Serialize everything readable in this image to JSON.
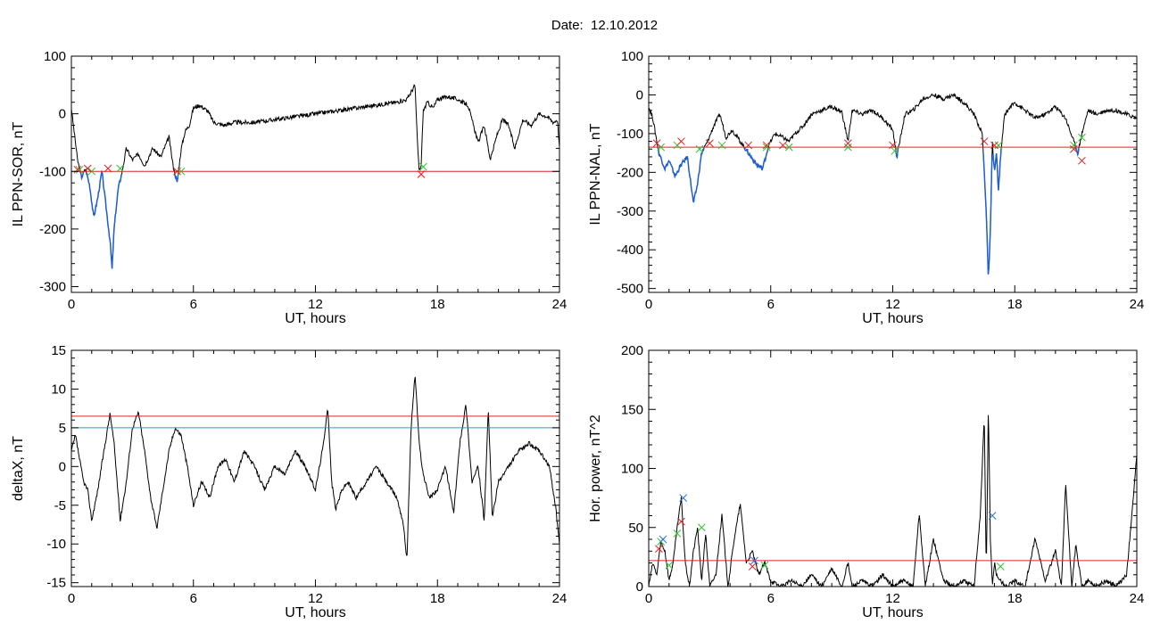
{
  "title": "Date:  12.10.2012",
  "colors": {
    "trace": "#000000",
    "highlight": "#1f5fd0",
    "threshold": "#e02020",
    "threshold2": "#20a0c0",
    "marker_start": "#30c030",
    "marker_end": "#e02020",
    "marker_peak": "#3070e0"
  },
  "chart_data": [
    {
      "id": "sor",
      "type": "line",
      "xlabel": "UT, hours",
      "ylabel": "IL PPN-SOR, nT",
      "xlim": [
        0,
        24
      ],
      "ylim": [
        -310,
        100
      ],
      "xticks": [
        0,
        6,
        12,
        18,
        24
      ],
      "yticks": [
        100,
        0,
        -100,
        -200,
        -300
      ],
      "grid": false,
      "threshold": -100,
      "series": [
        {
          "x": [
            0,
            0.3,
            0.5,
            0.7,
            0.9,
            1.1,
            1.3,
            1.5,
            1.7,
            1.9,
            2.0,
            2.1,
            2.3,
            2.5,
            2.7,
            3.0,
            3.3,
            3.6,
            4.0,
            4.4,
            4.8,
            5.0,
            5.2,
            5.4,
            5.6,
            5.8,
            6.0,
            6.3,
            6.7,
            7.0,
            7.5,
            8,
            9,
            10,
            11,
            12,
            13,
            14,
            15,
            16,
            16.5,
            16.9,
            17.0,
            17.1,
            17.2,
            17.3,
            17.5,
            17.8,
            18,
            18.5,
            19,
            19.5,
            20,
            20.3,
            20.6,
            20.9,
            21.2,
            21.5,
            21.8,
            22.2,
            22.6,
            23,
            23.4,
            23.7,
            23.9,
            24
          ],
          "y": [
            10,
            -80,
            -110,
            -95,
            -125,
            -180,
            -145,
            -100,
            -160,
            -220,
            -270,
            -200,
            -130,
            -100,
            -60,
            -80,
            -70,
            -90,
            -60,
            -75,
            -40,
            -90,
            -120,
            -60,
            -30,
            -20,
            10,
            15,
            5,
            -15,
            -20,
            -15,
            -15,
            -10,
            -5,
            0,
            5,
            10,
            15,
            20,
            25,
            50,
            -40,
            -100,
            -90,
            5,
            20,
            10,
            25,
            30,
            25,
            15,
            -50,
            -20,
            -80,
            -40,
            -10,
            -20,
            -60,
            -10,
            -20,
            0,
            -5,
            -15,
            -10,
            -60
          ]
        }
      ],
      "markers": {
        "start": [
          [
            0.4,
            -97
          ],
          [
            1.0,
            -100
          ],
          [
            2.4,
            -95
          ],
          [
            5.4,
            -100
          ],
          [
            17.3,
            -92
          ]
        ],
        "end": [
          [
            0.3,
            -97
          ],
          [
            0.8,
            -95
          ],
          [
            1.8,
            -95
          ],
          [
            5.2,
            -100
          ],
          [
            17.2,
            -105
          ]
        ]
      }
    },
    {
      "id": "nal",
      "type": "line",
      "xlabel": "UT, hours",
      "ylabel": "IL PPN-NAL, nT",
      "xlim": [
        0,
        24
      ],
      "ylim": [
        -510,
        100
      ],
      "xticks": [
        0,
        6,
        12,
        18,
        24
      ],
      "yticks": [
        100,
        0,
        -100,
        -200,
        -300,
        -400,
        -500
      ],
      "grid": false,
      "threshold": -135,
      "series": [
        {
          "x": [
            0,
            0.2,
            0.5,
            0.8,
            1.0,
            1.3,
            1.6,
            1.9,
            2.2,
            2.4,
            2.6,
            2.9,
            3.2,
            3.5,
            3.8,
            4.1,
            4.5,
            4.9,
            5.3,
            5.6,
            5.9,
            6.2,
            6.6,
            6.9,
            7.2,
            7.6,
            8,
            8.5,
            9,
            9.5,
            9.8,
            10,
            10.5,
            11,
            11.5,
            12,
            12.2,
            12.6,
            13,
            13.5,
            14,
            14.5,
            15,
            15.5,
            16,
            16.4,
            16.6,
            16.7,
            16.8,
            16.9,
            17.0,
            17.1,
            17.2,
            17.3,
            17.5,
            17.8,
            18,
            18.5,
            19,
            19.5,
            20,
            20.5,
            20.9,
            21.1,
            21.3,
            21.6,
            22,
            22.5,
            23,
            23.5,
            24
          ],
          "y": [
            -30,
            -60,
            -150,
            -190,
            -170,
            -210,
            -180,
            -160,
            -280,
            -230,
            -150,
            -120,
            -80,
            -50,
            -110,
            -90,
            -120,
            -150,
            -180,
            -190,
            -130,
            -100,
            -110,
            -120,
            -100,
            -80,
            -50,
            -40,
            -30,
            -45,
            -120,
            -40,
            -50,
            -40,
            -60,
            -90,
            -160,
            -50,
            -40,
            -10,
            0,
            -10,
            0,
            -20,
            -50,
            -100,
            -300,
            -480,
            -350,
            -120,
            -200,
            -150,
            -250,
            -160,
            -50,
            -30,
            -20,
            -40,
            -60,
            -50,
            -30,
            -60,
            -120,
            -150,
            -100,
            -40,
            -50,
            -40,
            -40,
            -50,
            -60
          ]
        }
      ],
      "markers": {
        "start": [
          [
            0.6,
            -135
          ],
          [
            1.4,
            -130
          ],
          [
            2.5,
            -140
          ],
          [
            3.6,
            -130
          ],
          [
            5.8,
            -135
          ],
          [
            6.9,
            -135
          ],
          [
            9.8,
            -135
          ],
          [
            12.1,
            -145
          ],
          [
            17.2,
            -130
          ],
          [
            20.9,
            -130
          ],
          [
            21.3,
            -110
          ]
        ],
        "end": [
          [
            0.4,
            -125
          ],
          [
            1.6,
            -120
          ],
          [
            3.0,
            -125
          ],
          [
            4.9,
            -130
          ],
          [
            5.8,
            -130
          ],
          [
            6.6,
            -130
          ],
          [
            9.8,
            -125
          ],
          [
            12.0,
            -130
          ],
          [
            16.5,
            -120
          ],
          [
            17.0,
            -130
          ],
          [
            20.9,
            -140
          ],
          [
            21.3,
            -170
          ]
        ]
      }
    },
    {
      "id": "deltax",
      "type": "line",
      "xlabel": "UT, hours",
      "ylabel": "deltaX, nT",
      "xlim": [
        0,
        24
      ],
      "ylim": [
        -15.5,
        15
      ],
      "xticks": [
        0,
        6,
        12,
        18,
        24
      ],
      "yticks": [
        15,
        10,
        5,
        0,
        -5,
        -10,
        -15
      ],
      "grid": false,
      "threshold": 6.5,
      "threshold2": 5,
      "series": [
        {
          "x": [
            0,
            0.2,
            0.4,
            0.6,
            0.8,
            1.0,
            1.3,
            1.6,
            1.9,
            2.1,
            2.4,
            2.7,
            3.0,
            3.3,
            3.6,
            3.9,
            4.2,
            4.5,
            4.8,
            5.1,
            5.4,
            5.7,
            6.0,
            6.4,
            6.8,
            7.2,
            7.6,
            8,
            8.5,
            9,
            9.5,
            10,
            10.5,
            11,
            11.5,
            12,
            12.4,
            12.6,
            12.8,
            13.0,
            13.3,
            13.6,
            14,
            14.5,
            15,
            15.5,
            16,
            16.3,
            16.5,
            16.7,
            16.9,
            17.1,
            17.3,
            17.6,
            18,
            18.4,
            18.8,
            19.1,
            19.4,
            19.7,
            20,
            20.3,
            20.5,
            20.7,
            21.0,
            21.5,
            22,
            22.5,
            23,
            23.5,
            23.8,
            24
          ],
          "y": [
            2,
            4,
            1,
            -2,
            -3,
            -7,
            -3,
            2,
            6.8,
            3,
            -7,
            -2,
            5,
            7,
            2,
            -4,
            -8,
            -3,
            2,
            5,
            4,
            0,
            -5,
            -2,
            -4,
            0,
            1,
            -2,
            2,
            0,
            -3,
            0,
            -1,
            2,
            0,
            -3,
            3,
            7.8,
            -2,
            -5.5,
            -3,
            -2,
            -4,
            -2,
            0,
            -2,
            -4,
            -7,
            -12,
            5,
            12,
            3,
            -1,
            -4,
            -3,
            0,
            -6,
            3,
            8,
            -2,
            0,
            -7,
            7.5,
            -6.5,
            -2,
            0,
            2,
            3,
            2,
            0,
            -5,
            -10
          ]
        }
      ]
    },
    {
      "id": "power",
      "type": "line",
      "xlabel": "UT, hours",
      "ylabel": "Hor. power, nT^2",
      "xlim": [
        0,
        24
      ],
      "ylim": [
        0,
        200
      ],
      "xticks": [
        0,
        6,
        12,
        18,
        24
      ],
      "yticks": [
        200,
        150,
        100,
        50,
        0
      ],
      "grid": false,
      "threshold": 22,
      "series": [
        {
          "x": [
            0,
            0.2,
            0.4,
            0.6,
            0.8,
            1.0,
            1.2,
            1.4,
            1.6,
            1.8,
            2.0,
            2.2,
            2.4,
            2.6,
            2.8,
            3.0,
            3.3,
            3.6,
            3.9,
            4.2,
            4.5,
            4.8,
            5.1,
            5.4,
            5.7,
            6.0,
            6.5,
            7,
            7.5,
            8,
            8.5,
            9,
            9.5,
            9.8,
            10,
            10.5,
            11,
            11.5,
            12,
            12.5,
            13,
            13.3,
            13.6,
            14,
            14.5,
            15,
            15.5,
            16,
            16.3,
            16.5,
            16.6,
            16.7,
            16.8,
            16.9,
            17.0,
            17.1,
            17.3,
            17.6,
            18,
            18.5,
            19,
            19.5,
            20,
            20.3,
            20.5,
            20.8,
            21.0,
            21.3,
            21.6,
            22,
            22.5,
            23,
            23.5,
            23.8,
            24
          ],
          "y": [
            0,
            20,
            10,
            38,
            30,
            5,
            20,
            50,
            75,
            20,
            0,
            30,
            50,
            5,
            45,
            0,
            10,
            60,
            0,
            40,
            70,
            20,
            30,
            10,
            20,
            5,
            0,
            5,
            0,
            10,
            0,
            15,
            0,
            20,
            0,
            5,
            0,
            10,
            0,
            5,
            0,
            62,
            0,
            40,
            5,
            0,
            5,
            0,
            60,
            145,
            10,
            155,
            40,
            0,
            20,
            10,
            5,
            0,
            5,
            0,
            40,
            5,
            30,
            0,
            88,
            0,
            35,
            0,
            5,
            0,
            5,
            0,
            10,
            70,
            112
          ]
        }
      ],
      "markers": {
        "start": [
          [
            0.6,
            38
          ],
          [
            1.0,
            18
          ],
          [
            1.4,
            45
          ],
          [
            2.6,
            50
          ],
          [
            5.7,
            18
          ],
          [
            17.3,
            17
          ]
        ],
        "end": [
          [
            0.5,
            32
          ],
          [
            1.6,
            55
          ],
          [
            5.1,
            17
          ]
        ],
        "peak": [
          [
            0.7,
            40
          ],
          [
            1.7,
            75
          ],
          [
            5.2,
            22
          ],
          [
            16.9,
            60
          ]
        ]
      }
    }
  ]
}
